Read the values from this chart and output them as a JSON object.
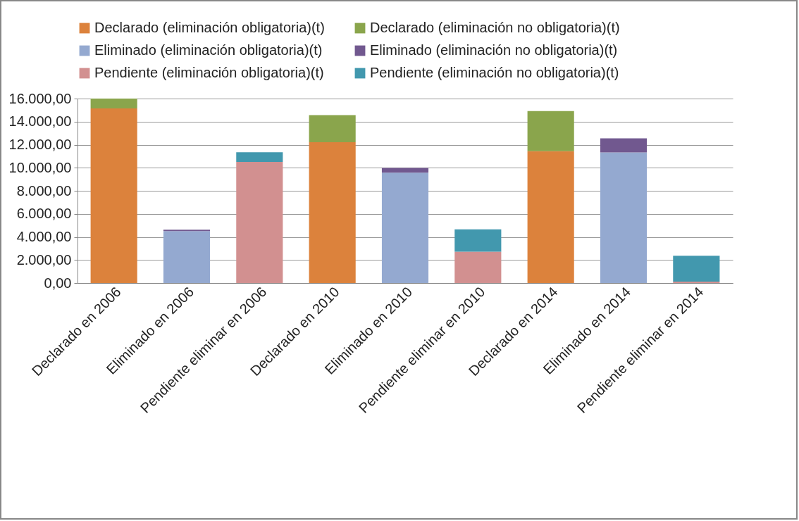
{
  "chart_data": {
    "type": "bar",
    "stacked": true,
    "categories": [
      "Declarado en 2006",
      "Eliminado en 2006",
      "Pendiente eliminar en 2006",
      "Declarado en 2010",
      "Eliminado en 2010",
      "Pendiente eliminar en 2010",
      "Declarado en 2014",
      "Eliminado en 2014",
      "Pendiente eliminar en 2014"
    ],
    "series": [
      {
        "name": "Declarado (eliminación obligatoria)(t)",
        "color": "#dc823c",
        "values": [
          15140,
          null,
          null,
          12220,
          null,
          null,
          11430,
          null,
          null
        ]
      },
      {
        "name": "Declarado (eliminación no obligatoria)(t)",
        "color": "#8aa54c",
        "values": [
          860,
          null,
          null,
          2340,
          null,
          null,
          3480,
          null,
          null
        ]
      },
      {
        "name": "Eliminado (eliminación obligatoria)(t)",
        "color": "#94a9d0",
        "values": [
          null,
          4510,
          null,
          null,
          9570,
          null,
          null,
          11330,
          null
        ]
      },
      {
        "name": "Eliminado (eliminación no obligatoria)(t)",
        "color": "#71588f",
        "values": [
          null,
          120,
          null,
          null,
          420,
          null,
          null,
          1220,
          null
        ]
      },
      {
        "name": "Pendiente (eliminación obligatoria)(t)",
        "color": "#d29090",
        "values": [
          null,
          null,
          10510,
          null,
          null,
          2710,
          null,
          null,
          120
        ]
      },
      {
        "name": "Pendiente (eliminación no obligatoria)(t)",
        "color": "#4298ae",
        "values": [
          null,
          null,
          830,
          null,
          null,
          1940,
          null,
          null,
          2240
        ]
      }
    ],
    "ylim": [
      0,
      16000
    ],
    "yticks": [
      {
        "value": 0,
        "label": "0,00"
      },
      {
        "value": 2000,
        "label": "2.000,00"
      },
      {
        "value": 4000,
        "label": "4.000,00"
      },
      {
        "value": 6000,
        "label": "6.000,00"
      },
      {
        "value": 8000,
        "label": "8.000,00"
      },
      {
        "value": 10000,
        "label": "10.000,00"
      },
      {
        "value": 12000,
        "label": "12.000,00"
      },
      {
        "value": 14000,
        "label": "14.000,00"
      },
      {
        "value": 16000,
        "label": "16.000,00"
      }
    ],
    "grid": "y",
    "legend": "top"
  }
}
